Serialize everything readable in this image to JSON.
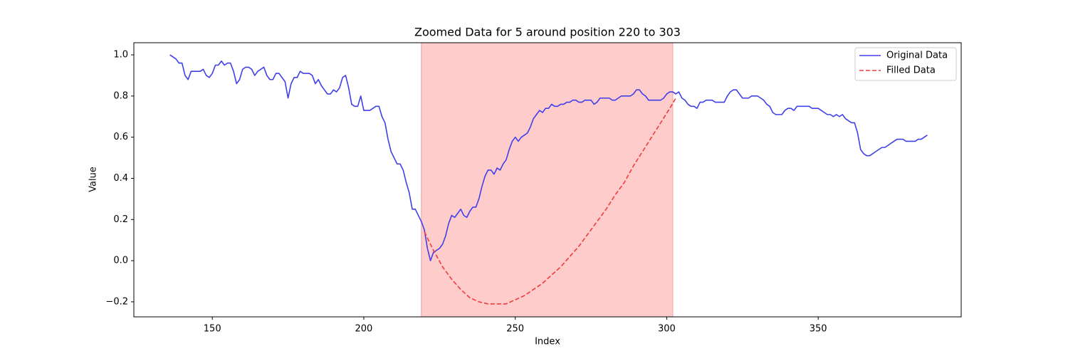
{
  "chart_data": {
    "type": "line",
    "title": "Zoomed Data for 5 around position 220 to 303",
    "xlabel": "Index",
    "ylabel": "Value",
    "xlim": [
      124.1,
      397.2
    ],
    "ylim": [
      -0.273,
      1.059
    ],
    "xticks": [
      150,
      200,
      250,
      300,
      350
    ],
    "yticks": [
      {
        "value": -0.2,
        "label": "−0.2"
      },
      {
        "value": 0,
        "label": "0.0"
      },
      0.2,
      0.4,
      0.6,
      0.8,
      {
        "value": 1,
        "label": "1.0"
      }
    ],
    "highlight": [
      219,
      302
    ],
    "highlight_color": "#ffcccc",
    "legend": "upper right",
    "series": [
      {
        "name": "Original Data",
        "color": "#4040e8",
        "linestyle": "solid",
        "x": [
          136,
          137,
          138,
          139,
          140,
          141,
          142,
          143,
          144,
          145,
          146,
          147,
          148,
          149,
          150,
          151,
          152,
          153,
          154,
          155,
          156,
          157,
          158,
          159,
          160,
          161,
          162,
          163,
          164,
          165,
          166,
          167,
          168,
          169,
          170,
          171,
          172,
          173,
          174,
          175,
          176,
          177,
          178,
          179,
          180,
          181,
          182,
          183,
          184,
          185,
          186,
          187,
          188,
          189,
          190,
          191,
          192,
          193,
          194,
          195,
          196,
          197,
          198,
          199,
          200,
          201,
          202,
          203,
          204,
          205,
          206,
          207,
          208,
          209,
          210,
          211,
          212,
          213,
          214,
          215,
          216,
          217,
          218,
          219,
          220,
          221,
          222,
          223,
          224,
          225,
          226,
          227,
          228,
          229,
          230,
          231,
          232,
          233,
          234,
          235,
          236,
          237,
          238,
          239,
          240,
          241,
          242,
          243,
          244,
          245,
          246,
          247,
          248,
          249,
          250,
          251,
          252,
          253,
          254,
          255,
          256,
          257,
          258,
          259,
          260,
          261,
          262,
          263,
          264,
          265,
          266,
          267,
          268,
          269,
          270,
          271,
          272,
          273,
          274,
          275,
          276,
          277,
          278,
          279,
          280,
          281,
          282,
          283,
          284,
          285,
          286,
          287,
          288,
          289,
          290,
          291,
          292,
          293,
          294,
          295,
          296,
          297,
          298,
          299,
          300,
          301,
          302,
          303,
          304,
          305,
          306,
          307,
          308,
          309,
          310,
          311,
          312,
          313,
          314,
          315,
          316,
          317,
          318,
          319,
          320,
          321,
          322,
          323,
          324,
          325,
          326,
          327,
          328,
          329,
          330,
          331,
          332,
          333,
          334,
          335,
          336,
          337,
          338,
          339,
          340,
          341,
          342,
          343,
          344,
          345,
          346,
          347,
          348,
          349,
          350,
          351,
          352,
          353,
          354,
          355,
          356,
          357,
          358,
          359,
          360,
          361,
          362,
          363,
          364,
          365,
          366,
          367,
          368,
          369,
          370,
          371,
          372,
          373,
          374,
          375,
          376,
          377,
          378,
          379,
          380,
          381,
          382,
          383,
          384,
          385,
          386
        ],
        "values": [
          1.0,
          0.99,
          0.98,
          0.96,
          0.96,
          0.9,
          0.88,
          0.92,
          0.92,
          0.92,
          0.92,
          0.93,
          0.9,
          0.89,
          0.91,
          0.95,
          0.95,
          0.97,
          0.95,
          0.96,
          0.96,
          0.92,
          0.86,
          0.88,
          0.93,
          0.94,
          0.94,
          0.93,
          0.9,
          0.92,
          0.93,
          0.94,
          0.9,
          0.88,
          0.88,
          0.91,
          0.91,
          0.89,
          0.87,
          0.79,
          0.86,
          0.89,
          0.89,
          0.92,
          0.91,
          0.91,
          0.91,
          0.9,
          0.86,
          0.88,
          0.85,
          0.83,
          0.81,
          0.81,
          0.83,
          0.82,
          0.84,
          0.89,
          0.9,
          0.84,
          0.76,
          0.75,
          0.75,
          0.8,
          0.73,
          0.73,
          0.73,
          0.74,
          0.75,
          0.75,
          0.7,
          0.67,
          0.59,
          0.53,
          0.5,
          0.47,
          0.47,
          0.44,
          0.38,
          0.33,
          0.25,
          0.25,
          0.22,
          0.19,
          0.15,
          0.06,
          0.0,
          0.04,
          0.05,
          0.06,
          0.08,
          0.12,
          0.18,
          0.22,
          0.21,
          0.23,
          0.25,
          0.22,
          0.21,
          0.24,
          0.26,
          0.26,
          0.3,
          0.36,
          0.41,
          0.44,
          0.44,
          0.42,
          0.45,
          0.44,
          0.47,
          0.49,
          0.54,
          0.58,
          0.6,
          0.58,
          0.6,
          0.61,
          0.62,
          0.65,
          0.69,
          0.71,
          0.73,
          0.72,
          0.74,
          0.74,
          0.76,
          0.75,
          0.75,
          0.76,
          0.76,
          0.77,
          0.77,
          0.78,
          0.78,
          0.77,
          0.77,
          0.78,
          0.78,
          0.78,
          0.76,
          0.77,
          0.79,
          0.79,
          0.79,
          0.79,
          0.78,
          0.78,
          0.79,
          0.8,
          0.8,
          0.8,
          0.8,
          0.81,
          0.83,
          0.83,
          0.81,
          0.8,
          0.78,
          0.78,
          0.78,
          0.78,
          0.78,
          0.79,
          0.81,
          0.82,
          0.82,
          0.81,
          0.82,
          0.79,
          0.78,
          0.76,
          0.75,
          0.75,
          0.74,
          0.77,
          0.77,
          0.78,
          0.78,
          0.78,
          0.77,
          0.77,
          0.77,
          0.77,
          0.8,
          0.82,
          0.83,
          0.83,
          0.81,
          0.79,
          0.79,
          0.79,
          0.8,
          0.8,
          0.8,
          0.79,
          0.78,
          0.76,
          0.75,
          0.72,
          0.71,
          0.71,
          0.71,
          0.73,
          0.74,
          0.74,
          0.73,
          0.75,
          0.75,
          0.75,
          0.75,
          0.75,
          0.74,
          0.74,
          0.74,
          0.73,
          0.72,
          0.71,
          0.71,
          0.7,
          0.71,
          0.7,
          0.71,
          0.69,
          0.68,
          0.67,
          0.67,
          0.62,
          0.54,
          0.52,
          0.51,
          0.51,
          0.52,
          0.53,
          0.54,
          0.55,
          0.55,
          0.56,
          0.57,
          0.58,
          0.59,
          0.59,
          0.59,
          0.58,
          0.58,
          0.58,
          0.58,
          0.59,
          0.59,
          0.6,
          0.61
        ]
      },
      {
        "name": "Filled Data",
        "color": "#f03c3c",
        "linestyle": "dashed",
        "x": [
          220,
          223,
          226,
          229,
          232,
          235,
          238,
          241,
          244,
          247,
          250,
          253,
          256,
          259,
          262,
          265,
          268,
          271,
          274,
          277,
          280,
          283,
          286,
          289,
          292,
          295,
          298,
          301,
          303
        ],
        "values": [
          0.14,
          0.05,
          -0.03,
          -0.09,
          -0.14,
          -0.18,
          -0.2,
          -0.21,
          -0.21,
          -0.21,
          -0.19,
          -0.17,
          -0.14,
          -0.11,
          -0.07,
          -0.03,
          0.02,
          0.07,
          0.13,
          0.19,
          0.25,
          0.32,
          0.38,
          0.46,
          0.53,
          0.6,
          0.67,
          0.74,
          0.79
        ]
      }
    ]
  }
}
